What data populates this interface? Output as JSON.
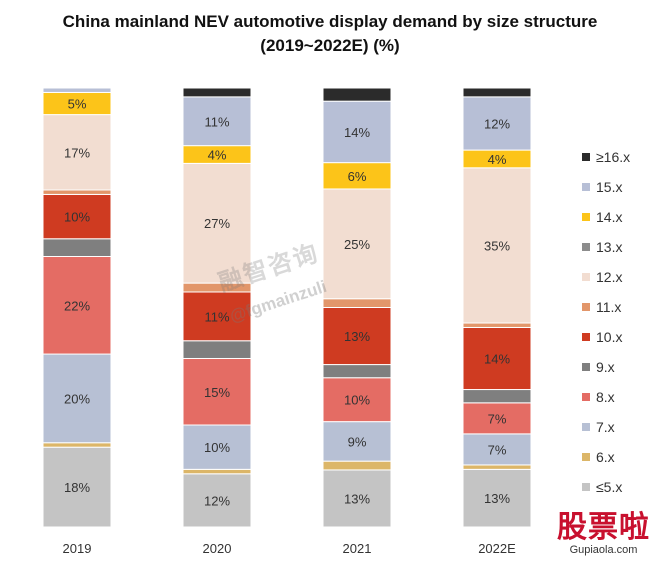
{
  "chart_data": {
    "type": "bar",
    "stacked": true,
    "title": "China mainland NEV automotive display demand by size structure",
    "subtitle": "(2019~2022E) (%)",
    "categories": [
      "2019",
      "2020",
      "2021",
      "2022E"
    ],
    "ylim": [
      0,
      100
    ],
    "legend_position": "right",
    "series": [
      {
        "name": "≤5.x",
        "color": "#c4c4c4",
        "values": [
          18,
          12,
          13,
          13
        ],
        "labels": [
          "18%",
          "12%",
          "13%",
          "13%"
        ]
      },
      {
        "name": "6.x",
        "color": "#dcb668",
        "values": [
          1,
          1,
          2,
          1
        ],
        "labels": [
          "",
          "",
          "",
          ""
        ]
      },
      {
        "name": "7.x",
        "color": "#b7c0d4",
        "values": [
          20,
          10,
          9,
          7
        ],
        "labels": [
          "20%",
          "10%",
          "9%",
          "7%"
        ]
      },
      {
        "name": "8.x",
        "color": "#e46c64",
        "values": [
          22,
          15,
          10,
          7
        ],
        "labels": [
          "22%",
          "15%",
          "10%",
          "7%"
        ]
      },
      {
        "name": "9.x",
        "color": "#7f7f7f",
        "values": [
          4,
          4,
          3,
          3
        ],
        "labels": [
          "",
          "",
          "",
          ""
        ]
      },
      {
        "name": "10.x",
        "color": "#cf3b21",
        "values": [
          10,
          11,
          13,
          14
        ],
        "labels": [
          "10%",
          "11%",
          "13%",
          "14%"
        ]
      },
      {
        "name": "11.x",
        "color": "#e2966a",
        "values": [
          1,
          2,
          2,
          1
        ],
        "labels": [
          "",
          "",
          "",
          ""
        ]
      },
      {
        "name": "12.x",
        "color": "#f2ddd1",
        "values": [
          17,
          27,
          25,
          35
        ],
        "labels": [
          "17%",
          "27%",
          "25%",
          "35%"
        ]
      },
      {
        "name": "13.x",
        "color": "#8c8c8c",
        "values": [
          0,
          0,
          0,
          0
        ],
        "labels": [
          "",
          "",
          "",
          ""
        ]
      },
      {
        "name": "14.x",
        "color": "#fcc419",
        "values": [
          5,
          4,
          6,
          4
        ],
        "labels": [
          "5%",
          "4%",
          "6%",
          "4%"
        ]
      },
      {
        "name": "15.x",
        "color": "#b7bfd6",
        "values": [
          1,
          11,
          14,
          12
        ],
        "labels": [
          "",
          "11%",
          "14%",
          "12%"
        ]
      },
      {
        "name": "≥16.x",
        "color": "#2b2b2b",
        "values": [
          0,
          2,
          3,
          2
        ],
        "labels": [
          "",
          "",
          "",
          ""
        ]
      }
    ]
  },
  "watermark": {
    "line1": "融智咨询",
    "line2": "@fgmainzuli"
  },
  "brand": {
    "name": "股票啦",
    "url": "Gupiaola.com"
  }
}
